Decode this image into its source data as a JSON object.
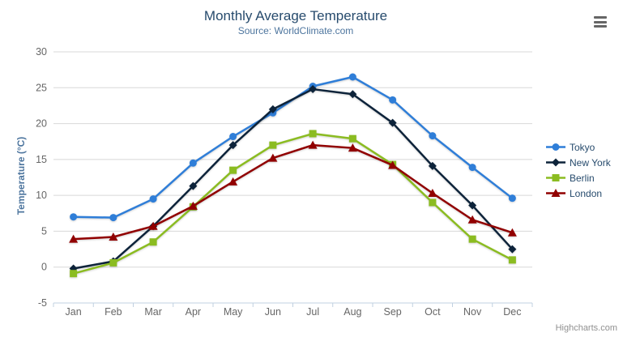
{
  "header": {
    "title": "Monthly Average Temperature",
    "subtitle": "Source: WorldClimate.com"
  },
  "chart_data": {
    "type": "line",
    "title": "Monthly Average Temperature",
    "subtitle": "Source: WorldClimate.com",
    "categories": [
      "Jan",
      "Feb",
      "Mar",
      "Apr",
      "May",
      "Jun",
      "Jul",
      "Aug",
      "Sep",
      "Oct",
      "Nov",
      "Dec"
    ],
    "series": [
      {
        "name": "Tokyo",
        "color": "#2f7ed8",
        "marker": "circle",
        "values": [
          7.0,
          6.9,
          9.5,
          14.5,
          18.2,
          21.5,
          25.2,
          26.5,
          23.3,
          18.3,
          13.9,
          9.6
        ]
      },
      {
        "name": "New York",
        "color": "#0d233a",
        "marker": "diamond",
        "values": [
          -0.2,
          0.8,
          5.7,
          11.3,
          17.0,
          22.0,
          24.8,
          24.1,
          20.1,
          14.1,
          8.6,
          2.5
        ]
      },
      {
        "name": "Berlin",
        "color": "#8bbc21",
        "marker": "square",
        "values": [
          -0.9,
          0.6,
          3.5,
          8.4,
          13.5,
          17.0,
          18.6,
          17.9,
          14.3,
          9.0,
          3.9,
          1.0
        ]
      },
      {
        "name": "London",
        "color": "#910000",
        "marker": "triangle",
        "values": [
          3.9,
          4.2,
          5.7,
          8.5,
          11.9,
          15.2,
          17.0,
          16.6,
          14.2,
          10.3,
          6.6,
          4.8
        ]
      }
    ],
    "xlabel": "",
    "ylabel": "Temperature (°C)",
    "ylim": [
      -5,
      30
    ],
    "ytick_interval": 5,
    "grid": true,
    "legend_position": "right"
  },
  "credits": {
    "label": "Highcharts.com"
  },
  "icons": {
    "context_menu": "hamburger-menu"
  },
  "colors": {
    "background": "#ffffff",
    "title": "#274b6d",
    "subtitle": "#4d759e",
    "axis_title": "#4d759e",
    "tick_label": "#666666",
    "grid_line": "#d8d8d8",
    "axis_line": "#c0d0e0",
    "legend_text": "#274b6d",
    "credits_text": "#909090",
    "menu_icon": "#666666"
  }
}
